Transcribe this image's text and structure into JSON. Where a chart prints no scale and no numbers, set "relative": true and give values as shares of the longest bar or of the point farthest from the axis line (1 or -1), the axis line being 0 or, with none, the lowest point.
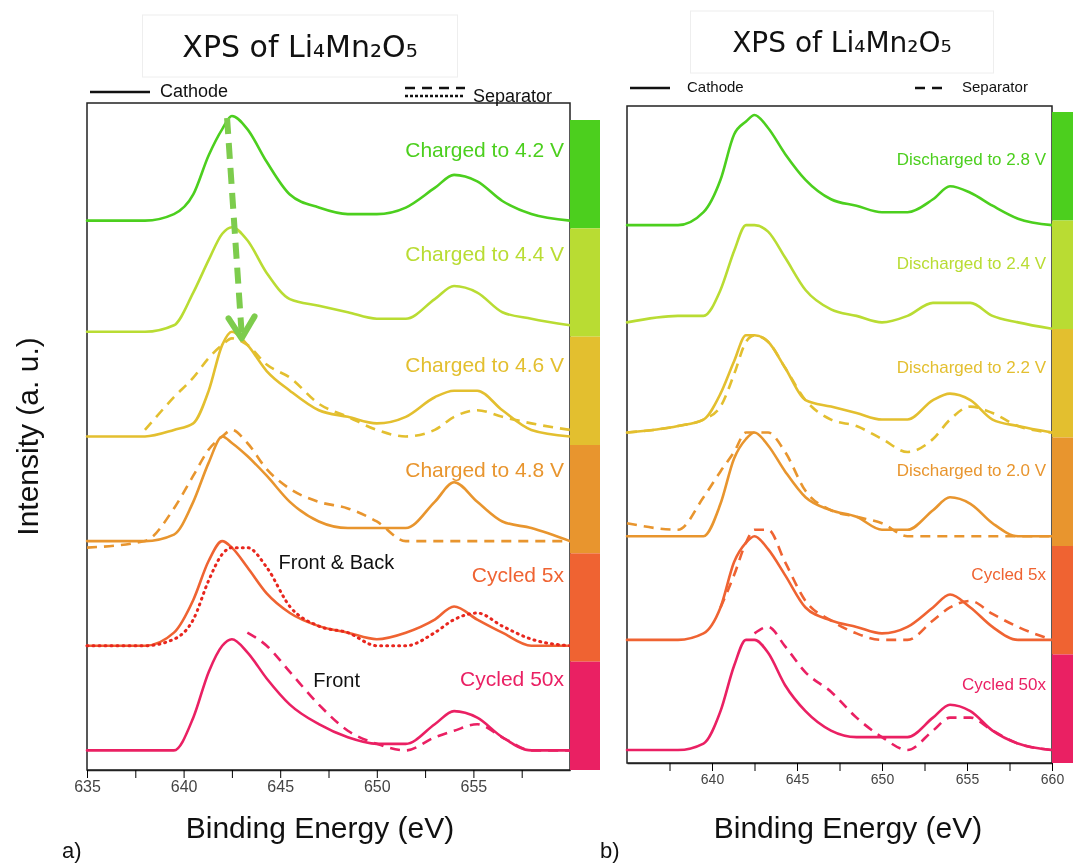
{
  "chart_data": [
    {
      "type": "line",
      "title": "XPS of Li₄Mn₂O₅",
      "xlabel": "Binding Energy (eV)",
      "ylabel": "Intensity (a. u.)",
      "relative": true,
      "x": [
        635,
        638,
        639.5,
        640.5,
        641.3,
        642,
        642.5,
        643.3,
        644.3,
        645.5,
        647,
        648.5,
        650,
        651.5,
        653,
        654,
        655.2,
        656.5,
        658,
        660
      ],
      "xlim": [
        635,
        660
      ],
      "xticks": [
        635,
        {
          "value": 637.5,
          "label": null
        },
        640,
        {
          "value": 642.5,
          "label": null
        },
        645,
        {
          "value": 647.5,
          "label": null
        },
        650,
        {
          "value": 652.5,
          "label": null
        },
        655,
        {
          "value": 657.5,
          "label": null
        }
      ],
      "series": [
        {
          "name": "Charged to 4.2 V",
          "color": "#4ccf1e",
          "line_style": "solid",
          "values": [
            0.84,
            0.84,
            0.85,
            0.88,
            0.94,
            0.98,
            1.0,
            0.98,
            0.93,
            0.88,
            0.86,
            0.85,
            0.85,
            0.86,
            0.89,
            0.91,
            0.9,
            0.87,
            0.85,
            0.84
          ]
        },
        {
          "name": "Charged to 4.4 V",
          "color": "#b9dc33",
          "line_style": "solid",
          "values": [
            0.67,
            0.67,
            0.68,
            0.73,
            0.78,
            0.82,
            0.83,
            0.81,
            0.76,
            0.72,
            0.71,
            0.7,
            0.69,
            0.69,
            0.72,
            0.74,
            0.73,
            0.7,
            0.69,
            0.68
          ]
        },
        {
          "name": "Charged to 4.6 V",
          "color": "#e3bf2f",
          "line_style": "solid",
          "values": [
            0.51,
            0.51,
            0.52,
            0.53,
            0.58,
            0.65,
            0.67,
            0.65,
            0.61,
            0.58,
            0.55,
            0.54,
            0.53,
            0.54,
            0.57,
            0.58,
            0.58,
            0.55,
            0.52,
            0.51
          ]
        },
        {
          "color": "#e3bf2f",
          "line_style": "dashed",
          "values": [
            null,
            0.52,
            0.57,
            0.6,
            0.63,
            0.65,
            0.66,
            0.65,
            0.62,
            0.6,
            0.56,
            0.54,
            0.52,
            0.51,
            0.52,
            0.54,
            0.55,
            0.54,
            0.53,
            0.52
          ]
        },
        {
          "name": "Charged to 4.8 V",
          "color": "#e8952e",
          "line_style": "solid",
          "values": [
            0.35,
            0.35,
            0.36,
            0.41,
            0.47,
            0.51,
            0.5,
            0.48,
            0.45,
            0.41,
            0.38,
            0.37,
            0.37,
            0.37,
            0.41,
            0.44,
            0.41,
            0.38,
            0.37,
            0.35
          ]
        },
        {
          "color": "#e8952e",
          "line_style": "dashed",
          "values": [
            0.34,
            0.35,
            0.4,
            0.45,
            0.49,
            0.51,
            0.52,
            0.5,
            0.46,
            0.43,
            0.41,
            0.4,
            0.38,
            0.35,
            0.35,
            0.35,
            0.35,
            0.35,
            0.35,
            0.35
          ]
        },
        {
          "name": "Cycled 5x",
          "color": "#ef6332",
          "line_style": "solid",
          "values": [
            0.19,
            0.19,
            0.21,
            0.26,
            0.32,
            0.35,
            0.34,
            0.31,
            0.27,
            0.24,
            0.22,
            0.21,
            0.2,
            0.21,
            0.23,
            0.25,
            0.23,
            0.21,
            0.19,
            0.19
          ]
        },
        {
          "color": "#e8261e",
          "line_style": "dotted",
          "values": [
            0.19,
            0.19,
            0.2,
            0.23,
            0.29,
            0.33,
            0.34,
            0.34,
            0.31,
            0.25,
            0.22,
            0.21,
            0.19,
            0.19,
            0.21,
            0.23,
            0.24,
            0.22,
            0.2,
            0.19
          ]
        },
        {
          "name": "Cycled 50x",
          "color": "#ea2063",
          "line_style": "solid",
          "values": [
            0.03,
            0.03,
            0.03,
            0.08,
            0.15,
            0.19,
            0.2,
            0.18,
            0.14,
            0.1,
            0.07,
            0.05,
            0.04,
            0.04,
            0.07,
            0.09,
            0.08,
            0.05,
            0.03,
            0.03
          ]
        },
        {
          "color": "#ea2063",
          "line_style": "dashed",
          "values": [
            null,
            null,
            null,
            null,
            null,
            null,
            null,
            0.21,
            0.19,
            0.15,
            0.1,
            0.06,
            0.04,
            0.03,
            0.05,
            0.06,
            0.07,
            0.05,
            0.03,
            0.03
          ]
        }
      ],
      "annotations": [
        "Cathode",
        "Separator",
        "a)",
        {
          "text": "Front & Back",
          "x": 644.5,
          "y": 0.3
        },
        {
          "text": "Front",
          "x": 646.3,
          "y": 0.12
        }
      ]
    },
    {
      "type": "line",
      "title": "XPS of Li₄Mn₂O₅",
      "xlabel": "Binding Energy (eV)",
      "relative": true,
      "x": [
        635,
        638,
        639.5,
        640.5,
        641.3,
        642,
        642.5,
        643.3,
        644.3,
        645.5,
        647,
        648.5,
        650,
        651.5,
        653,
        654,
        655.2,
        656.5,
        658,
        660
      ],
      "xlim": [
        635,
        660
      ],
      "xticks": [
        {
          "value": 637.5,
          "label": null
        },
        640,
        {
          "value": 642.5,
          "label": null
        },
        645,
        {
          "value": 647.5,
          "label": null
        },
        650,
        {
          "value": 652.5,
          "label": null
        },
        655,
        {
          "value": 657.5,
          "label": null
        },
        660
      ],
      "series": [
        {
          "name": "Discharged to 2.8 V",
          "color": "#4ccf1e",
          "line_style": "solid",
          "values": [
            0.83,
            0.83,
            0.85,
            0.9,
            0.97,
            0.99,
            1.0,
            0.98,
            0.94,
            0.9,
            0.87,
            0.86,
            0.85,
            0.85,
            0.87,
            0.89,
            0.88,
            0.86,
            0.84,
            0.83
          ]
        },
        {
          "name": "Discharged to 2.4 V",
          "color": "#b9dc33",
          "line_style": "solid",
          "values": [
            0.68,
            0.69,
            0.69,
            0.73,
            0.79,
            0.83,
            0.83,
            0.82,
            0.78,
            0.73,
            0.7,
            0.69,
            0.68,
            0.69,
            0.71,
            0.71,
            0.71,
            0.69,
            0.68,
            0.67
          ]
        },
        {
          "name": "Discharged to 2.2 V",
          "color": "#e3bf2f",
          "line_style": "solid",
          "values": [
            0.51,
            0.52,
            0.53,
            0.57,
            0.62,
            0.66,
            0.66,
            0.65,
            0.61,
            0.56,
            0.55,
            0.54,
            0.53,
            0.53,
            0.56,
            0.57,
            0.56,
            0.53,
            0.52,
            0.51
          ]
        },
        {
          "color": "#e3bf2f",
          "line_style": "dashed",
          "values": [
            0.51,
            0.52,
            0.53,
            0.55,
            0.6,
            0.65,
            0.66,
            0.65,
            0.61,
            0.56,
            0.53,
            0.52,
            0.5,
            0.48,
            0.5,
            0.53,
            0.55,
            0.54,
            0.52,
            0.51
          ]
        },
        {
          "name": "Discharged to 2.0 V",
          "color": "#e8952e",
          "line_style": "solid",
          "values": [
            0.35,
            0.35,
            0.35,
            0.4,
            0.47,
            0.5,
            0.51,
            0.49,
            0.45,
            0.41,
            0.39,
            0.38,
            0.36,
            0.36,
            0.39,
            0.41,
            0.4,
            0.37,
            0.35,
            0.35
          ]
        },
        {
          "color": "#e8952e",
          "line_style": "dashed",
          "values": [
            0.37,
            0.36,
            0.41,
            0.45,
            0.48,
            0.51,
            0.51,
            0.51,
            0.48,
            0.42,
            0.39,
            0.38,
            0.37,
            0.35,
            0.35,
            0.35,
            0.35,
            0.35,
            0.35,
            0.35
          ]
        },
        {
          "name": "Cycled 5x",
          "color": "#ef6332",
          "line_style": "solid",
          "values": [
            0.19,
            0.19,
            0.2,
            0.24,
            0.31,
            0.34,
            0.35,
            0.33,
            0.29,
            0.24,
            0.22,
            0.21,
            0.2,
            0.21,
            0.24,
            0.26,
            0.24,
            0.21,
            0.19,
            0.19
          ]
        },
        {
          "color": "#ef6332",
          "line_style": "dashed",
          "values": [
            null,
            null,
            null,
            0.24,
            0.29,
            0.34,
            0.36,
            0.36,
            0.31,
            0.25,
            0.22,
            0.2,
            0.19,
            0.19,
            0.22,
            0.24,
            0.25,
            0.23,
            0.21,
            0.19
          ]
        },
        {
          "name": "Cycled 50x",
          "color": "#ea2063",
          "line_style": "solid",
          "values": [
            0.02,
            0.02,
            0.03,
            0.08,
            0.15,
            0.19,
            0.19,
            0.17,
            0.12,
            0.08,
            0.05,
            0.04,
            0.04,
            0.04,
            0.07,
            0.09,
            0.08,
            0.05,
            0.03,
            0.02
          ]
        },
        {
          "color": "#ea2063",
          "line_style": "dashed",
          "values": [
            null,
            null,
            null,
            null,
            null,
            null,
            0.2,
            0.21,
            0.18,
            0.14,
            0.11,
            0.07,
            0.04,
            0.02,
            0.05,
            0.07,
            0.07,
            0.05,
            0.03,
            0.02
          ]
        }
      ],
      "annotations": [
        "Cathode",
        "Separator",
        "b)"
      ]
    }
  ]
}
